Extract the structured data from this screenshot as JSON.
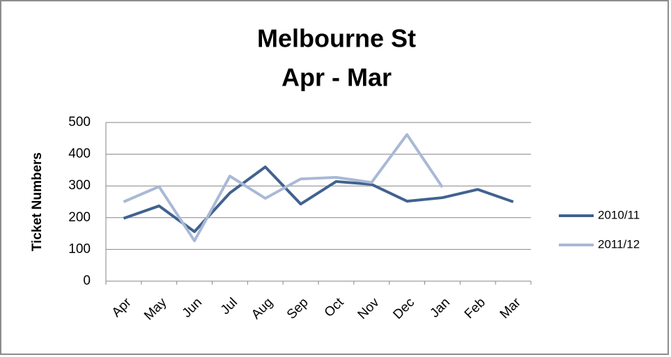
{
  "chart_data": {
    "type": "line",
    "title": "Melbourne St",
    "subtitle": "Apr - Mar",
    "y_label": "Ticket Numbers",
    "categories": [
      "Apr",
      "May",
      "Jun",
      "Jul",
      "Aug",
      "Sep",
      "Oct",
      "Nov",
      "Dec",
      "Jan",
      "Feb",
      "Mar"
    ],
    "series": [
      {
        "name": "2010/11",
        "color": "#41628f",
        "values": [
          198,
          237,
          156,
          278,
          360,
          243,
          314,
          305,
          252,
          263,
          289,
          250
        ]
      },
      {
        "name": "2011/12",
        "color": "#a9b9d5",
        "values": [
          250,
          298,
          127,
          331,
          261,
          322,
          327,
          311,
          462,
          296,
          null,
          null
        ]
      }
    ],
    "ylim": [
      0,
      500
    ],
    "yticks": [
      0,
      100,
      200,
      300,
      400,
      500
    ],
    "grid": true,
    "legend": "right"
  }
}
